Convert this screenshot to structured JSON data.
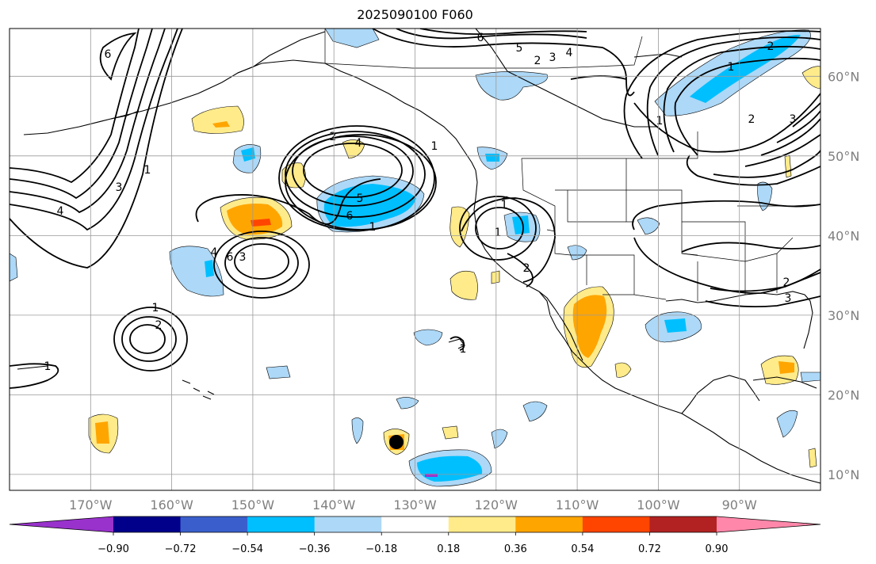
{
  "title": "2025090100 F060",
  "map": {
    "projection": "PlateCarree",
    "lon_range": [
      -180,
      -80
    ],
    "lat_range": [
      8,
      66
    ],
    "gridlines": true,
    "lon_ticks": [
      "170°W",
      "160°W",
      "150°W",
      "140°W",
      "130°W",
      "120°W",
      "110°W",
      "100°W",
      "90°W"
    ],
    "lat_ticks": [
      "10°N",
      "20°N",
      "30°N",
      "40°N",
      "50°N",
      "60°N"
    ],
    "contour_color": "#000000",
    "contour_labels": [
      "6",
      "5",
      "2",
      "3",
      "4",
      "6",
      "3",
      "1",
      "4",
      "2",
      "4",
      "5",
      "6",
      "1",
      "1",
      "2",
      "2",
      "3",
      "4",
      "6",
      "3",
      "1",
      "1",
      "2",
      "1",
      "2",
      "1",
      "1",
      "2",
      "3",
      "1",
      "1"
    ]
  },
  "colorbar": {
    "ticks": [
      "−0.90",
      "−0.72",
      "−0.54",
      "−0.36",
      "−0.18",
      "0.18",
      "0.36",
      "0.54",
      "0.72",
      "0.90"
    ],
    "colors": [
      "#9932cc",
      "#00008b",
      "#3a5fcd",
      "#00bfff",
      "#add8f7",
      "#ffffff",
      "#ffeb8a",
      "#ffa500",
      "#ff4500",
      "#b22222",
      "#ff88aa"
    ],
    "extend": "both"
  }
}
